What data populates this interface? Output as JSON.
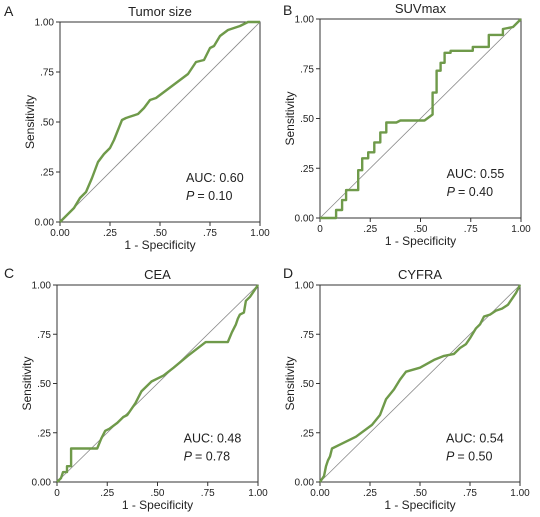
{
  "chart_data": [
    {
      "panel": "A",
      "type": "line",
      "title": "Tumor size",
      "xlabel": "1 - Specificity",
      "ylabel": "Sensitivity",
      "xlim": [
        0,
        1
      ],
      "ylim": [
        0,
        1
      ],
      "xticks": [
        "0.00",
        ".25",
        ".50",
        ".75",
        "1.00"
      ],
      "yticks": [
        "0.00",
        ".25",
        ".50",
        ".75",
        "1.00"
      ],
      "diagonal": true,
      "auc_label": "AUC: 0.60",
      "p_label": "P",
      "p_value": "= 0.10",
      "x": [
        0,
        0.03,
        0.07,
        0.1,
        0.13,
        0.16,
        0.19,
        0.22,
        0.25,
        0.27,
        0.29,
        0.31,
        0.33,
        0.36,
        0.39,
        0.42,
        0.45,
        0.48,
        0.52,
        0.56,
        0.6,
        0.64,
        0.68,
        0.72,
        0.75,
        0.77,
        0.8,
        0.84,
        0.87,
        0.9,
        0.94,
        1.0
      ],
      "y": [
        0,
        0.03,
        0.07,
        0.12,
        0.15,
        0.22,
        0.3,
        0.34,
        0.37,
        0.41,
        0.46,
        0.51,
        0.52,
        0.53,
        0.54,
        0.57,
        0.61,
        0.62,
        0.65,
        0.68,
        0.71,
        0.74,
        0.8,
        0.81,
        0.87,
        0.88,
        0.93,
        0.96,
        0.97,
        0.98,
        1.0,
        1.0
      ]
    },
    {
      "panel": "B",
      "type": "line",
      "title": "SUVmax",
      "xlabel": "1 - Specificity",
      "ylabel": "Sensitivity",
      "xlim": [
        0,
        1
      ],
      "ylim": [
        0,
        1
      ],
      "xticks": [
        "0",
        ".25",
        ".50",
        ".75",
        "1.00"
      ],
      "yticks": [
        "0.00",
        ".25",
        ".50",
        ".75",
        "1.00"
      ],
      "diagonal": true,
      "auc_label": "AUC: 0.55",
      "p_label": "P",
      "p_value": "= 0.40",
      "x": [
        0,
        0.08,
        0.08,
        0.11,
        0.11,
        0.13,
        0.13,
        0.19,
        0.19,
        0.21,
        0.21,
        0.24,
        0.24,
        0.27,
        0.27,
        0.3,
        0.3,
        0.33,
        0.33,
        0.38,
        0.4,
        0.52,
        0.56,
        0.56,
        0.58,
        0.58,
        0.6,
        0.6,
        0.62,
        0.62,
        0.65,
        0.65,
        0.76,
        0.76,
        0.84,
        0.84,
        0.91,
        0.91,
        0.96,
        1.0
      ],
      "y": [
        0,
        0,
        0.04,
        0.04,
        0.09,
        0.09,
        0.14,
        0.14,
        0.24,
        0.24,
        0.3,
        0.3,
        0.33,
        0.33,
        0.38,
        0.38,
        0.43,
        0.43,
        0.48,
        0.48,
        0.49,
        0.49,
        0.52,
        0.63,
        0.63,
        0.74,
        0.74,
        0.78,
        0.78,
        0.83,
        0.83,
        0.84,
        0.84,
        0.86,
        0.86,
        0.92,
        0.92,
        0.95,
        0.96,
        1.0
      ]
    },
    {
      "panel": "C",
      "type": "line",
      "title": "CEA",
      "xlabel": "1 - Specificity",
      "ylabel": "Sensitivity",
      "xlim": [
        0,
        1
      ],
      "ylim": [
        0,
        1
      ],
      "xticks": [
        "0",
        ".25",
        ".50",
        ".75",
        "1.00"
      ],
      "yticks": [
        "0.00",
        ".25",
        ".50",
        ".75",
        "1.00"
      ],
      "diagonal": true,
      "auc_label": "AUC: 0.48",
      "p_label": "P",
      "p_value": "= 0.78",
      "x": [
        0,
        0.02,
        0.03,
        0.05,
        0.05,
        0.07,
        0.07,
        0.2,
        0.22,
        0.24,
        0.26,
        0.3,
        0.33,
        0.35,
        0.39,
        0.42,
        0.47,
        0.53,
        0.58,
        0.65,
        0.74,
        0.85,
        0.87,
        0.89,
        0.9,
        0.91,
        0.93,
        0.94,
        0.96,
        0.98,
        1.0
      ],
      "y": [
        0,
        0.02,
        0.05,
        0.05,
        0.08,
        0.08,
        0.17,
        0.17,
        0.22,
        0.26,
        0.27,
        0.3,
        0.33,
        0.34,
        0.4,
        0.46,
        0.51,
        0.54,
        0.58,
        0.64,
        0.71,
        0.71,
        0.76,
        0.8,
        0.83,
        0.85,
        0.86,
        0.92,
        0.94,
        0.97,
        1.0
      ]
    },
    {
      "panel": "D",
      "type": "line",
      "title": "CYFRA",
      "xlabel": "1 - Specificity",
      "ylabel": "Sensitivity",
      "xlim": [
        0,
        1
      ],
      "ylim": [
        0,
        1
      ],
      "xticks": [
        "0.00",
        ".25",
        ".50",
        ".75",
        "1.00"
      ],
      "yticks": [
        "0.00",
        ".25",
        ".50",
        ".75",
        "1.00"
      ],
      "diagonal": true,
      "auc_label": "AUC: 0.54",
      "p_label": "P",
      "p_value": "= 0.50",
      "x": [
        0,
        0.02,
        0.03,
        0.04,
        0.05,
        0.06,
        0.1,
        0.18,
        0.26,
        0.3,
        0.33,
        0.37,
        0.4,
        0.43,
        0.5,
        0.57,
        0.62,
        0.67,
        0.7,
        0.73,
        0.75,
        0.78,
        0.8,
        0.82,
        0.85,
        0.88,
        0.91,
        0.94,
        0.96,
        0.98,
        1.0
      ],
      "y": [
        0,
        0.03,
        0.08,
        0.11,
        0.13,
        0.17,
        0.19,
        0.23,
        0.29,
        0.34,
        0.42,
        0.47,
        0.52,
        0.56,
        0.58,
        0.62,
        0.64,
        0.65,
        0.68,
        0.7,
        0.73,
        0.78,
        0.8,
        0.84,
        0.85,
        0.87,
        0.88,
        0.9,
        0.93,
        0.96,
        1.0
      ]
    }
  ],
  "colors": {
    "roc_line": "#6f9a4a",
    "diagonal": "#8a8a8a",
    "axes": "#333333"
  }
}
